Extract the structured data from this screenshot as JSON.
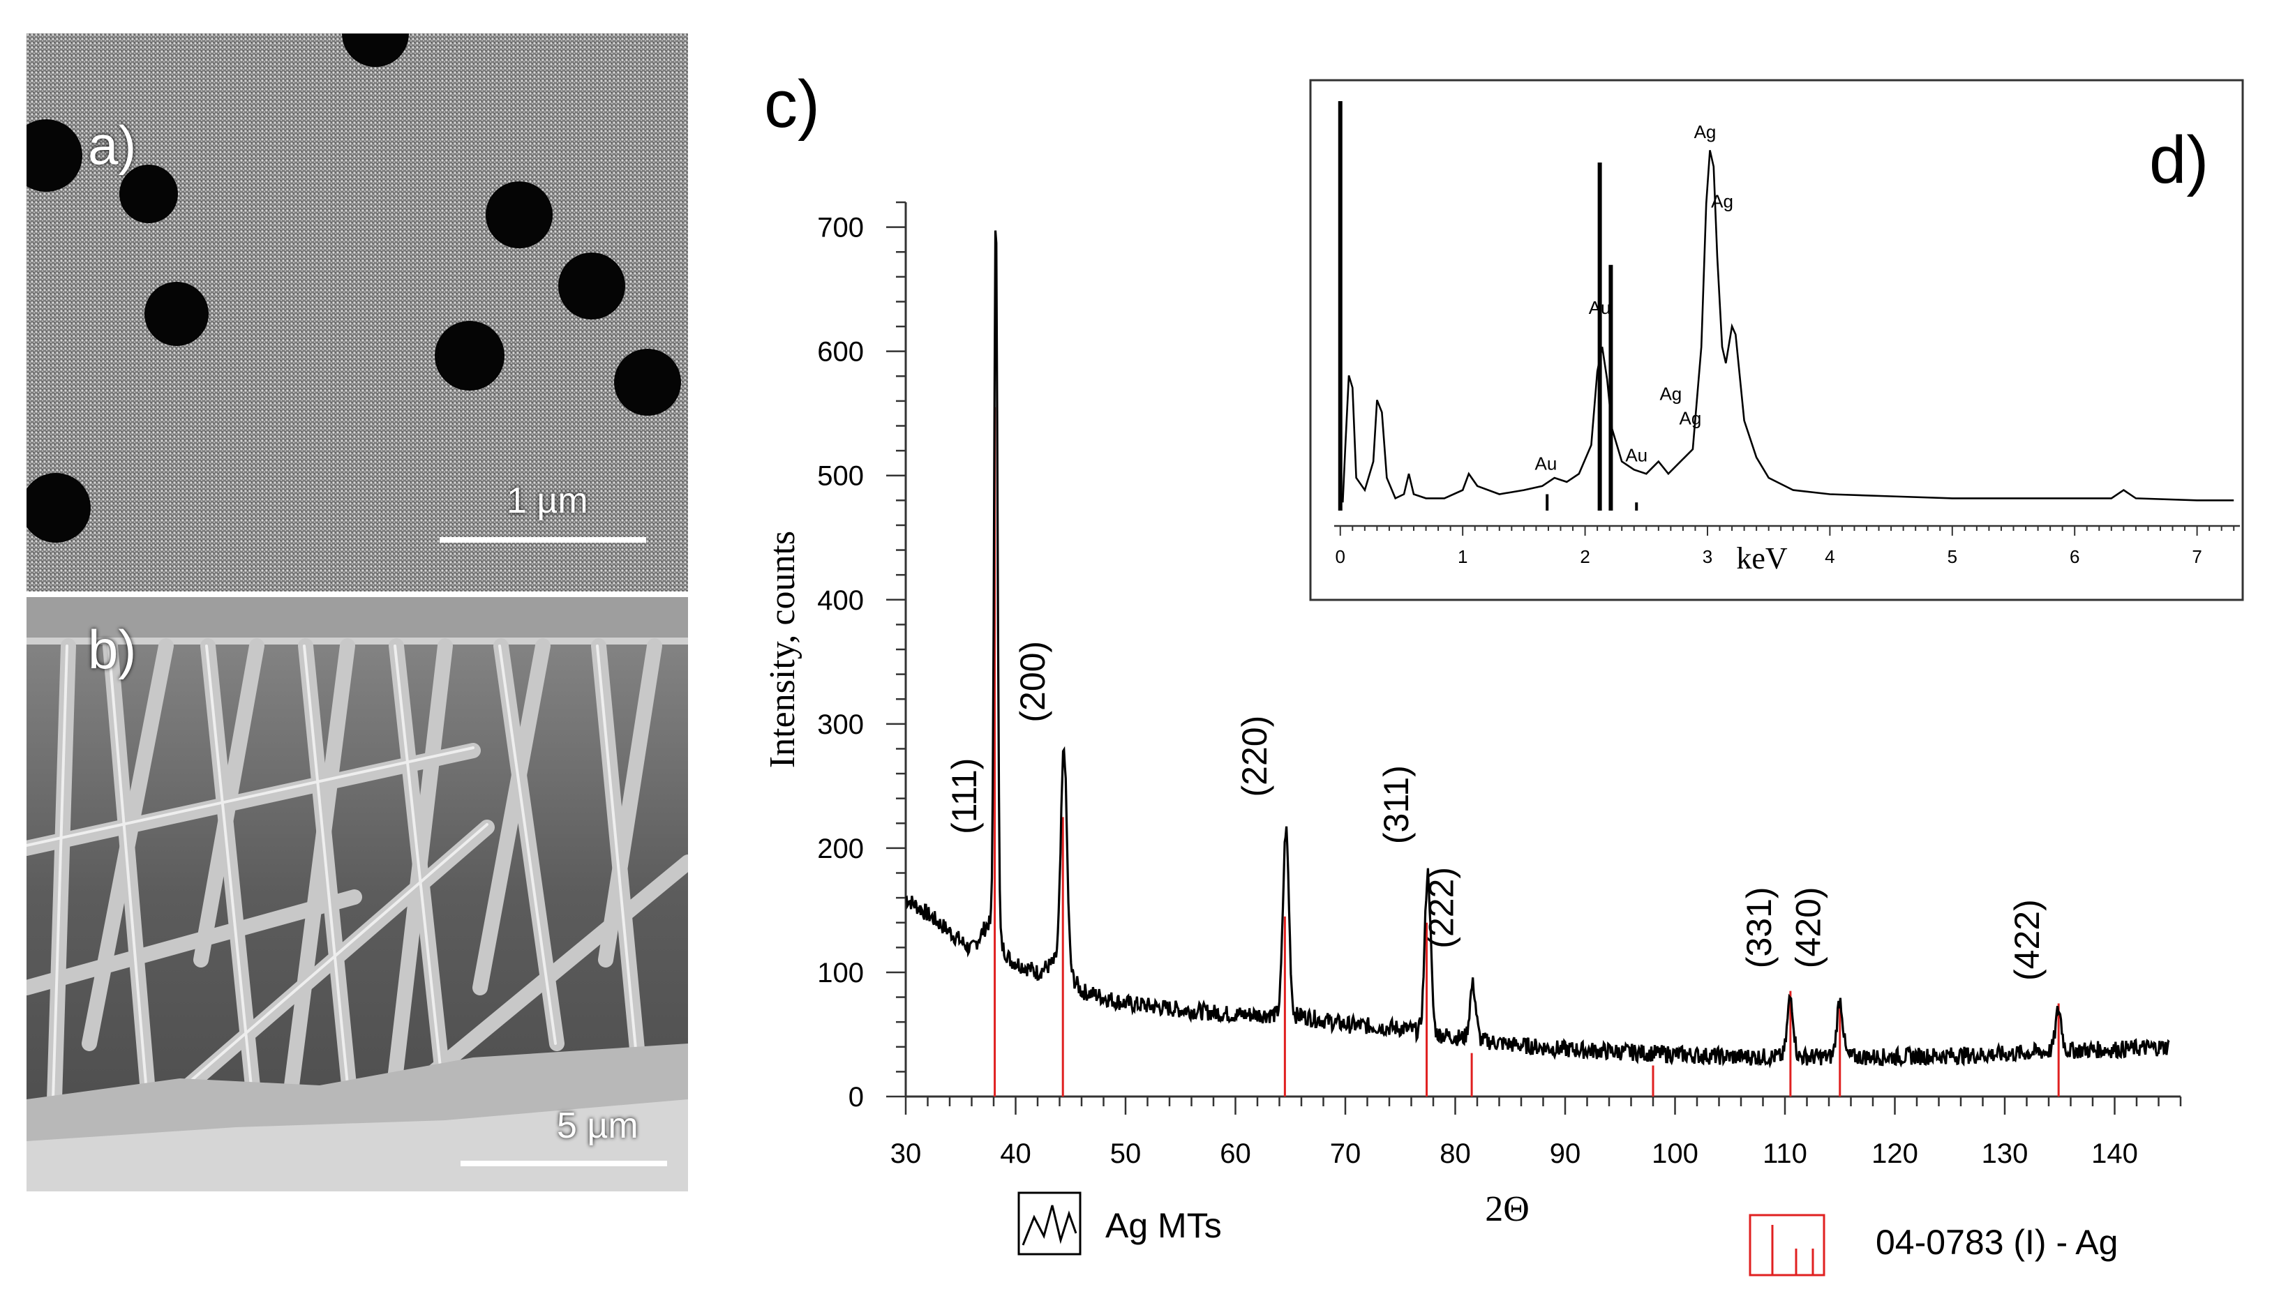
{
  "figure": {
    "panel_a": {
      "letter": "a)",
      "scalebar": "1 µm"
    },
    "panel_b": {
      "letter": "b)",
      "scalebar": "5 µm"
    },
    "panel_c": {
      "letter": "c)"
    },
    "panel_d": {
      "letter": "d)"
    }
  },
  "chart_data": [
    {
      "type": "line",
      "panel": "c",
      "xlabel": "2Θ",
      "ylabel": "Intensity, counts",
      "xlim": [
        30,
        146
      ],
      "ylim": [
        0,
        720
      ],
      "xticks": [
        30,
        40,
        50,
        60,
        70,
        80,
        90,
        100,
        110,
        120,
        130,
        140
      ],
      "yticks": [
        0,
        100,
        200,
        300,
        400,
        500,
        600,
        700
      ],
      "series": [
        {
          "name": "Ag MTs",
          "color": "#000000",
          "baseline": [
            [
              30,
              160
            ],
            [
              33,
              140
            ],
            [
              36,
              118
            ],
            [
              37.5,
              140
            ],
            [
              39.5,
              110
            ],
            [
              42,
              100
            ],
            [
              44,
              110
            ],
            [
              46,
              85
            ],
            [
              50,
              75
            ],
            [
              55,
              70
            ],
            [
              60,
              66
            ],
            [
              63,
              66
            ],
            [
              66,
              65
            ],
            [
              70,
              58
            ],
            [
              75,
              55
            ],
            [
              80,
              48
            ],
            [
              85,
              42
            ],
            [
              90,
              38
            ],
            [
              95,
              36
            ],
            [
              100,
              34
            ],
            [
              105,
              32
            ],
            [
              110,
              32
            ],
            [
              115,
              32
            ],
            [
              120,
              32
            ],
            [
              125,
              33
            ],
            [
              130,
              34
            ],
            [
              135,
              37
            ],
            [
              140,
              38
            ],
            [
              145,
              40
            ]
          ],
          "peaks": [
            {
              "x": 38.2,
              "y": 710
            },
            {
              "x": 44.4,
              "y": 280
            },
            {
              "x": 64.6,
              "y": 215
            },
            {
              "x": 77.5,
              "y": 180
            },
            {
              "x": 81.6,
              "y": 90
            },
            {
              "x": 110.5,
              "y": 80
            },
            {
              "x": 115.0,
              "y": 78
            },
            {
              "x": 134.9,
              "y": 70
            }
          ]
        },
        {
          "name": "04-0783 (I) - Ag",
          "color": "#e02020",
          "sticks": [
            {
              "x": 38.1,
              "y": 555
            },
            {
              "x": 44.3,
              "y": 225
            },
            {
              "x": 64.5,
              "y": 145
            },
            {
              "x": 77.4,
              "y": 140
            },
            {
              "x": 81.5,
              "y": 35
            },
            {
              "x": 98.0,
              "y": 25
            },
            {
              "x": 110.5,
              "y": 85
            },
            {
              "x": 115.0,
              "y": 75
            },
            {
              "x": 134.9,
              "y": 75
            }
          ]
        }
      ],
      "annotations": [
        {
          "text": "(111)",
          "x": 38.2,
          "y": 200
        },
        {
          "text": "(200)",
          "x": 44.4,
          "y": 290
        },
        {
          "text": "(220)",
          "x": 64.6,
          "y": 230
        },
        {
          "text": "(311)",
          "x": 77.5,
          "y": 192
        },
        {
          "text": "(222)",
          "x": 81.6,
          "y": 108
        },
        {
          "text": "(331)",
          "x": 110.5,
          "y": 92
        },
        {
          "text": "(420)",
          "x": 115.0,
          "y": 92
        },
        {
          "text": "(422)",
          "x": 134.9,
          "y": 82
        }
      ],
      "legend": [
        {
          "label": "Ag MTs",
          "style": "line-glyph",
          "color": "#000000"
        },
        {
          "label": "04-0783 (I) - Ag",
          "style": "stick-glyph",
          "color": "#e02020"
        }
      ],
      "legend_position": "bottom"
    },
    {
      "type": "line",
      "panel": "d",
      "xlabel": "keV",
      "xlim": [
        -0.05,
        7.35
      ],
      "ylim": [
        0,
        1
      ],
      "xticks": [
        0,
        1,
        2,
        3,
        4,
        5,
        6,
        7
      ],
      "spectrum": [
        [
          0.02,
          0.02
        ],
        [
          0.04,
          0.15
        ],
        [
          0.07,
          0.33
        ],
        [
          0.1,
          0.3
        ],
        [
          0.13,
          0.08
        ],
        [
          0.2,
          0.05
        ],
        [
          0.27,
          0.12
        ],
        [
          0.3,
          0.27
        ],
        [
          0.34,
          0.24
        ],
        [
          0.38,
          0.08
        ],
        [
          0.45,
          0.03
        ],
        [
          0.52,
          0.04
        ],
        [
          0.56,
          0.09
        ],
        [
          0.6,
          0.04
        ],
        [
          0.7,
          0.03
        ],
        [
          0.85,
          0.03
        ],
        [
          1.0,
          0.05
        ],
        [
          1.05,
          0.09
        ],
        [
          1.12,
          0.06
        ],
        [
          1.3,
          0.04
        ],
        [
          1.5,
          0.05
        ],
        [
          1.65,
          0.06
        ],
        [
          1.75,
          0.08
        ],
        [
          1.85,
          0.07
        ],
        [
          1.95,
          0.09
        ],
        [
          2.05,
          0.16
        ],
        [
          2.1,
          0.34
        ],
        [
          2.14,
          0.4
        ],
        [
          2.18,
          0.32
        ],
        [
          2.22,
          0.2
        ],
        [
          2.3,
          0.12
        ],
        [
          2.4,
          0.1
        ],
        [
          2.5,
          0.09
        ],
        [
          2.6,
          0.12
        ],
        [
          2.68,
          0.09
        ],
        [
          2.78,
          0.12
        ],
        [
          2.88,
          0.15
        ],
        [
          2.95,
          0.4
        ],
        [
          2.99,
          0.75
        ],
        [
          3.02,
          0.88
        ],
        [
          3.05,
          0.84
        ],
        [
          3.08,
          0.62
        ],
        [
          3.12,
          0.4
        ],
        [
          3.15,
          0.36
        ],
        [
          3.2,
          0.45
        ],
        [
          3.23,
          0.43
        ],
        [
          3.3,
          0.22
        ],
        [
          3.4,
          0.13
        ],
        [
          3.5,
          0.08
        ],
        [
          3.7,
          0.05
        ],
        [
          4.0,
          0.04
        ],
        [
          4.5,
          0.035
        ],
        [
          5.0,
          0.03
        ],
        [
          5.5,
          0.03
        ],
        [
          6.0,
          0.03
        ],
        [
          6.3,
          0.03
        ],
        [
          6.4,
          0.05
        ],
        [
          6.5,
          0.03
        ],
        [
          7.0,
          0.025
        ],
        [
          7.3,
          0.025
        ]
      ],
      "markers": [
        {
          "x": 0.0,
          "y": 1.0
        },
        {
          "x": 1.69,
          "y": 0.04
        },
        {
          "x": 2.12,
          "y": 0.85
        },
        {
          "x": 2.21,
          "y": 0.6
        },
        {
          "x": 2.42,
          "y": 0.02
        }
      ],
      "annotations": [
        {
          "text": "Ag",
          "x": 2.98,
          "y": 0.91
        },
        {
          "text": "Ag",
          "x": 3.12,
          "y": 0.74
        },
        {
          "text": "Au",
          "x": 2.12,
          "y": 0.48
        },
        {
          "text": "Ag",
          "x": 2.7,
          "y": 0.27
        },
        {
          "text": "Ag",
          "x": 2.86,
          "y": 0.21
        },
        {
          "text": "Au",
          "x": 1.68,
          "y": 0.1
        },
        {
          "text": "Au",
          "x": 2.42,
          "y": 0.12
        }
      ]
    }
  ]
}
